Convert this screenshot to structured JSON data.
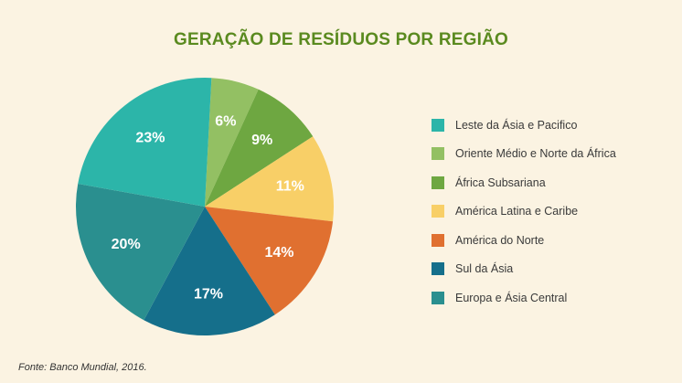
{
  "chart_data": {
    "type": "pie",
    "title": "GERAÇÃO DE RESÍDUOS POR REGIÃO",
    "source": "Fonte: Banco Mundial, 2016.",
    "legend_position": "right",
    "slices": [
      {
        "label": "Oriente Médio e Norte da África",
        "value": 6,
        "display": "6%",
        "color": "#93c063"
      },
      {
        "label": "África Subsariana",
        "value": 9,
        "display": "9%",
        "color": "#6ea741"
      },
      {
        "label": "América Latina e Caribe",
        "value": 11,
        "display": "11%",
        "color": "#f8cf67"
      },
      {
        "label": "América do Norte",
        "value": 14,
        "display": "14%",
        "color": "#e07030"
      },
      {
        "label": "Sul da Ásia",
        "value": 17,
        "display": "17%",
        "color": "#156f8b"
      },
      {
        "label": "Europa e Ásia Central",
        "value": 20,
        "display": "20%",
        "color": "#2a8f8f"
      },
      {
        "label": "Leste da Ásia e Pacifico",
        "value": 23,
        "display": "23%",
        "color": "#2cb5a9"
      }
    ],
    "legend": [
      {
        "label": "Leste da Ásia e Pacifico",
        "color": "#2cb5a9"
      },
      {
        "label": "Oriente Médio e Norte da África",
        "color": "#93c063"
      },
      {
        "label": "África Subsariana",
        "color": "#6ea741"
      },
      {
        "label": "América Latina e Caribe",
        "color": "#f8cf67"
      },
      {
        "label": "América do Norte",
        "color": "#e07030"
      },
      {
        "label": "Sul da Ásia",
        "color": "#156f8b"
      },
      {
        "label": "Europa e Ásia Central",
        "color": "#2a8f8f"
      }
    ]
  }
}
